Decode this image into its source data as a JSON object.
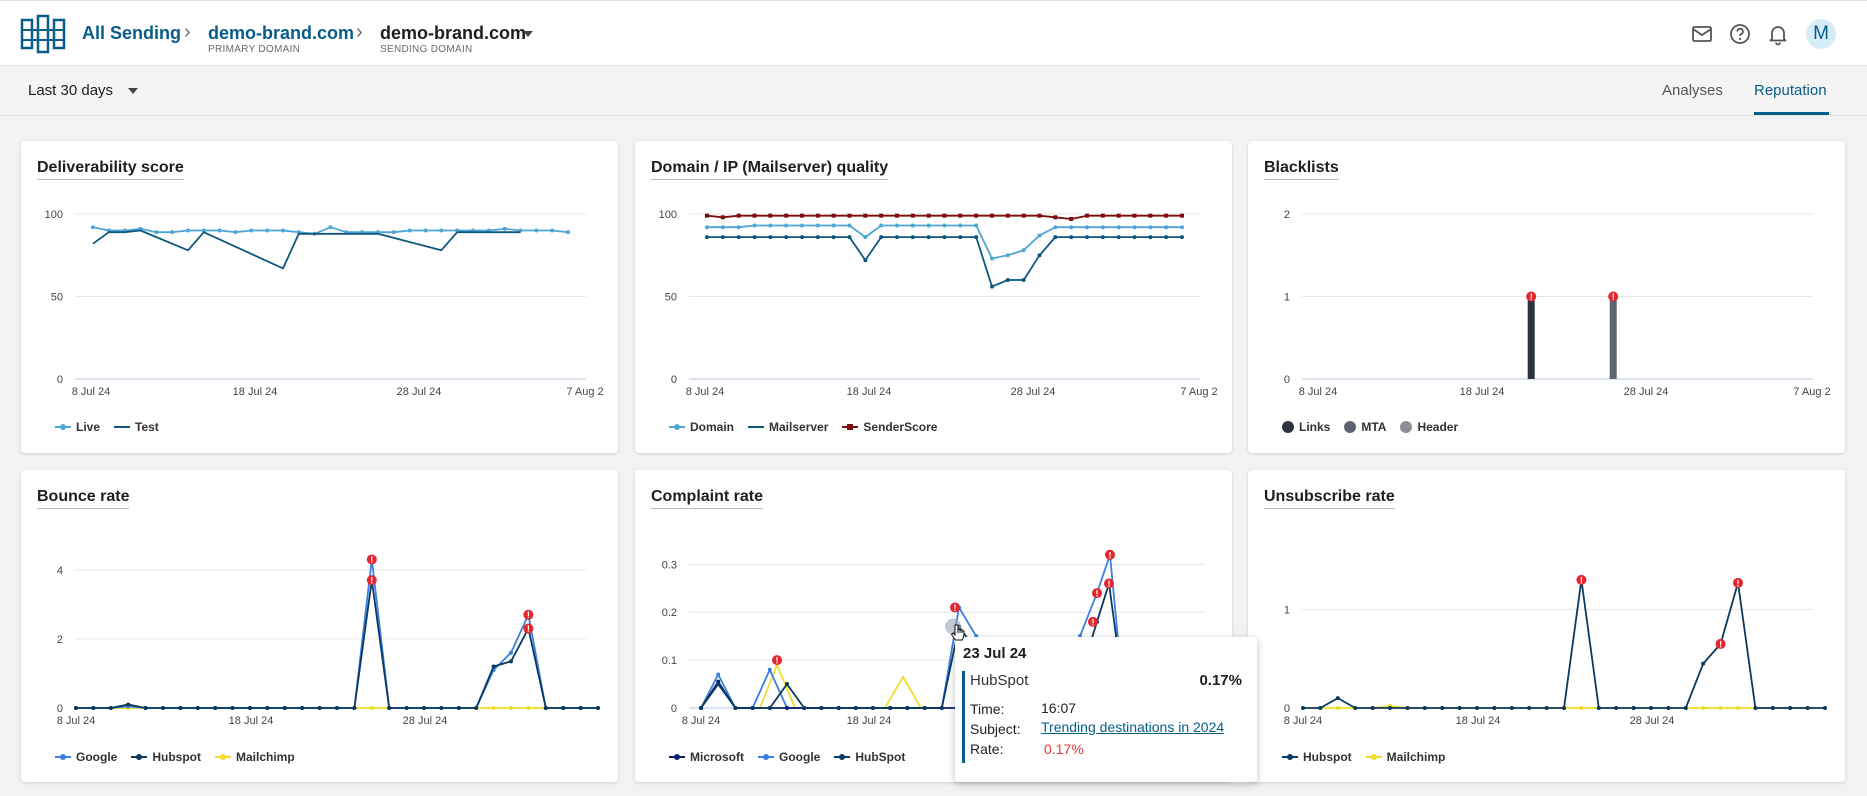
{
  "header": {
    "root_label": "All Sending",
    "primary": {
      "title": "demo-brand.com",
      "subtitle": "PRIMARY DOMAIN"
    },
    "sending": {
      "title": "demo-brand.com",
      "subtitle": "SENDING DOMAIN"
    },
    "avatar_initial": "M",
    "icons": [
      "mail-icon",
      "help-icon",
      "bell-icon"
    ]
  },
  "subbar": {
    "period": "Last 30 days",
    "tabs": [
      {
        "label": "Analyses",
        "active": false
      },
      {
        "label": "Reputation",
        "active": true
      }
    ]
  },
  "colors": {
    "brand": "#075d8a",
    "live": "#4ea6d6",
    "test": "#10577d",
    "domain": "#4ea6d6",
    "mailserver": "#10577d",
    "senderscore": "#7a0f0f",
    "google": "#3d7fe0",
    "hubspot": "#0b3a60",
    "mailchimp": "#f0dd2a",
    "microsoft": "#0a1f6e",
    "links": "#2d3440",
    "mta": "#5d6470",
    "header_bl": "#8a8e95",
    "alert": "#e6262f"
  },
  "cards": {
    "deliverability": {
      "title": "Deliverability score",
      "legend": [
        "Live",
        "Test"
      ]
    },
    "quality": {
      "title": "Domain / IP (Mailserver) quality",
      "legend": [
        "Domain",
        "Mailserver",
        "SenderScore"
      ]
    },
    "blacklists": {
      "title": "Blacklists",
      "legend": [
        "Links",
        "MTA",
        "Header"
      ]
    },
    "bounce": {
      "title": "Bounce rate",
      "legend": [
        "Google",
        "Hubspot",
        "Mailchimp"
      ]
    },
    "complaint": {
      "title": "Complaint rate",
      "legend": [
        "Microsoft",
        "Google",
        "HubSpot"
      ]
    },
    "unsubscribe": {
      "title": "Unsubscribe rate",
      "legend": [
        "Hubspot",
        "Mailchimp"
      ]
    }
  },
  "tooltip": {
    "date": "23 Jul 24",
    "sender": "HubSpot",
    "rate_top": "0.17%",
    "time_label": "Time:",
    "time": "16:07",
    "subject_label": "Subject:",
    "subject": "Trending destinations in 2024",
    "rate_label": "Rate:",
    "rate": "0.17%"
  },
  "chart_data": [
    {
      "type": "line",
      "title": "Deliverability score",
      "x_ticks": [
        "8 Jul 24",
        "18 Jul 24",
        "28 Jul 24",
        "7 Aug 2"
      ],
      "y_ticks": [
        0,
        50,
        100
      ],
      "ylim": [
        0,
        100
      ],
      "x": [
        "7/8",
        "7/9",
        "7/10",
        "7/11",
        "7/12",
        "7/13",
        "7/14",
        "7/15",
        "7/16",
        "7/17",
        "7/18",
        "7/19",
        "7/20",
        "7/21",
        "7/22",
        "7/23",
        "7/24",
        "7/25",
        "7/26",
        "7/27",
        "7/28",
        "7/29",
        "7/30",
        "7/31",
        "8/1",
        "8/2",
        "8/3",
        "8/4",
        "8/5",
        "8/6",
        "8/7"
      ],
      "series": [
        {
          "name": "Live",
          "values": [
            92,
            90,
            90,
            91,
            89,
            89,
            90,
            90,
            90,
            89,
            90,
            90,
            90,
            89,
            88,
            92,
            89,
            89,
            89,
            89,
            90,
            90,
            90,
            90,
            90,
            90,
            91,
            90,
            90,
            90,
            89
          ]
        },
        {
          "name": "Test",
          "points": [
            [
              "7/8",
              82
            ],
            [
              "7/9",
              89
            ],
            [
              "7/10",
              89
            ],
            [
              "7/11",
              90
            ],
            [
              "7/14",
              78
            ],
            [
              "7/15",
              89
            ],
            [
              "7/20",
              67
            ],
            [
              "7/21",
              88
            ],
            [
              "7/23",
              88
            ],
            [
              "7/26",
              88
            ],
            [
              "7/30",
              78
            ],
            [
              "7/31",
              89
            ],
            [
              "8/4",
              89
            ]
          ]
        }
      ],
      "legend_position": "bottom-left",
      "grid": true
    },
    {
      "type": "line",
      "title": "Domain / IP (Mailserver) quality",
      "x_ticks": [
        "8 Jul 24",
        "18 Jul 24",
        "28 Jul 24",
        "7 Aug 2"
      ],
      "y_ticks": [
        0,
        50,
        100
      ],
      "ylim": [
        0,
        100
      ],
      "series": [
        {
          "name": "Domain",
          "values": [
            92,
            92,
            92,
            93,
            93,
            93,
            93,
            93,
            93,
            93,
            86,
            93,
            93,
            93,
            93,
            93,
            93,
            93,
            73,
            75,
            78,
            87,
            92,
            92,
            92,
            92,
            92,
            92,
            92,
            92,
            92
          ]
        },
        {
          "name": "Mailserver",
          "values": [
            86,
            86,
            86,
            86,
            86,
            86,
            86,
            86,
            86,
            86,
            72,
            86,
            86,
            86,
            86,
            86,
            86,
            86,
            56,
            60,
            60,
            75,
            86,
            86,
            86,
            86,
            86,
            86,
            86,
            86,
            86
          ]
        },
        {
          "name": "SenderScore",
          "values": [
            99,
            98,
            99,
            99,
            99,
            99,
            99,
            99,
            99,
            99,
            99,
            99,
            99,
            99,
            99,
            99,
            99,
            99,
            99,
            99,
            99,
            99,
            98,
            97,
            99,
            99,
            99,
            99,
            99,
            99,
            99
          ]
        }
      ],
      "legend_position": "bottom-left",
      "grid": true
    },
    {
      "type": "bar",
      "title": "Blacklists",
      "x_ticks": [
        "8 Jul 24",
        "18 Jul 24",
        "28 Jul 24",
        "7 Aug 2"
      ],
      "y_ticks": [
        0,
        1,
        2
      ],
      "ylim": [
        0,
        2
      ],
      "series": [
        {
          "name": "Links",
          "points": [
            [
              "21 Jul 24",
              1
            ]
          ]
        },
        {
          "name": "MTA",
          "points": [
            [
              "26 Jul 24",
              1
            ]
          ]
        },
        {
          "name": "Header",
          "points": []
        }
      ],
      "legend_position": "bottom-left",
      "grid": true
    },
    {
      "type": "line",
      "title": "Bounce rate",
      "x_ticks": [
        "8 Jul 24",
        "18 Jul 24",
        "28 Jul 24"
      ],
      "y_ticks": [
        0,
        2,
        4
      ],
      "ylim": [
        0,
        4.4
      ],
      "series": [
        {
          "name": "Google",
          "values": [
            0,
            0,
            0,
            0.05,
            0,
            0,
            0,
            0,
            0,
            0,
            0,
            0,
            0,
            0,
            0,
            0,
            0,
            4.3,
            0,
            0,
            0,
            0,
            0,
            0,
            1.1,
            1.6,
            2.7,
            0,
            0,
            0,
            0
          ]
        },
        {
          "name": "Hubspot",
          "values": [
            0,
            0,
            0,
            0.1,
            0,
            0,
            0,
            0,
            0,
            0,
            0,
            0,
            0,
            0,
            0,
            0,
            0,
            3.7,
            0,
            0,
            0,
            0,
            0,
            0,
            1.2,
            1.35,
            2.3,
            0,
            0,
            0,
            0
          ]
        },
        {
          "name": "Mailchimp",
          "values": [
            0,
            0,
            0,
            0,
            0,
            0,
            0,
            0,
            0,
            0,
            0,
            0,
            0,
            0,
            0,
            0,
            0,
            0,
            0,
            0,
            0,
            0,
            0,
            0,
            0,
            0,
            0,
            0,
            0,
            0,
            0
          ]
        }
      ],
      "legend_position": "bottom-left",
      "grid": true
    },
    {
      "type": "line",
      "title": "Complaint rate",
      "x_ticks": [
        "8 Jul 24",
        "18 Jul 24"
      ],
      "y_ticks": [
        0,
        0.1,
        0.2,
        0.3
      ],
      "ylim": [
        0,
        0.33
      ],
      "series": [
        {
          "name": "Microsoft",
          "values": [
            0,
            0.055,
            0,
            0,
            0,
            0,
            0,
            0,
            0,
            0,
            0,
            0,
            0,
            0,
            0,
            0,
            0
          ]
        },
        {
          "name": "Google",
          "values": [
            0,
            0.07,
            0,
            0,
            0.08,
            0,
            0,
            0,
            0,
            0,
            0,
            0,
            0,
            0,
            0,
            0.21,
            0.15
          ]
        },
        {
          "name": "HubSpot",
          "values": [
            0,
            0.05,
            0,
            0,
            0,
            0.05,
            0,
            0,
            0,
            0,
            0,
            0,
            0,
            0,
            0,
            0.17,
            0.12
          ]
        }
      ],
      "legend_position": "bottom-left",
      "grid": true
    },
    {
      "type": "line",
      "title": "Unsubscribe rate",
      "x_ticks": [
        "8 Jul 24",
        "18 Jul 24",
        "28 Jul 24"
      ],
      "y_ticks": [
        0,
        1
      ],
      "ylim": [
        0,
        1.4
      ],
      "series": [
        {
          "name": "Hubspot",
          "values": [
            0,
            0,
            0.1,
            0,
            0,
            0,
            0,
            0,
            0,
            0,
            0,
            0,
            0,
            0,
            0,
            0,
            1.3,
            0,
            0,
            0,
            0,
            0,
            0,
            0.45,
            0.65,
            1.27,
            0,
            0,
            0,
            0,
            0
          ]
        },
        {
          "name": "Mailchimp",
          "values": [
            0,
            0,
            0,
            0,
            0,
            0.02,
            0,
            0,
            0,
            0,
            0,
            0,
            0,
            0,
            0,
            0,
            0,
            0,
            0,
            0,
            0,
            0,
            0,
            0,
            0,
            0,
            0,
            0,
            0,
            0,
            0
          ]
        }
      ],
      "legend_position": "bottom-left",
      "grid": true
    }
  ]
}
